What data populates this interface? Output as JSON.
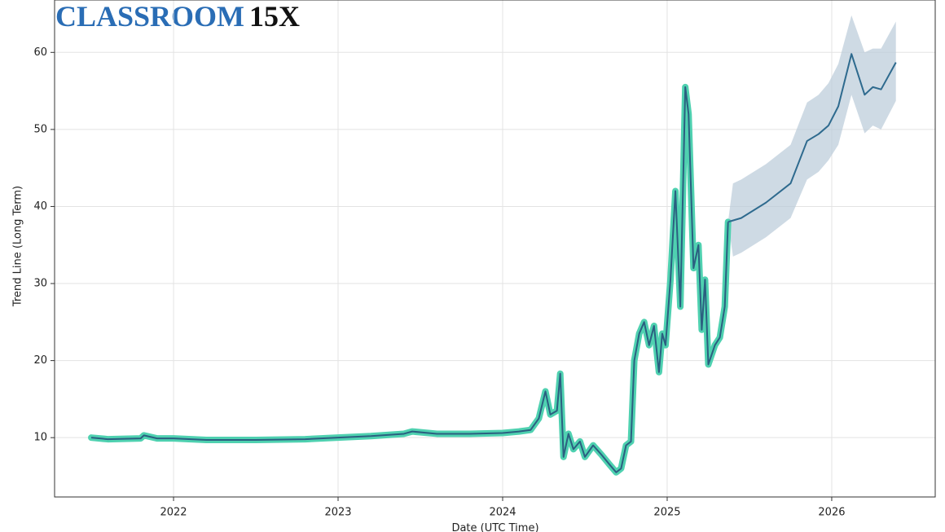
{
  "brand": {
    "name": "CLASSROOM",
    "mark": "15X"
  },
  "chart_data": {
    "type": "line",
    "xlabel": "Date (UTC Time)",
    "ylabel": "Trend Line (Long Term)",
    "xlim": [
      2021.277,
      2026.629
    ],
    "xticks": [
      2022,
      2023,
      2024,
      2025,
      2026
    ],
    "ylim": [
      2.3,
      66.8
    ],
    "yticks": [
      10,
      20,
      30,
      40,
      50,
      60
    ],
    "grid": true,
    "series": [
      {
        "color": "#2b5f80",
        "highlight": "#4fd1b0",
        "x": [
          2021.5,
          2021.6,
          2021.8,
          2021.82,
          2021.9,
          2022.0,
          2022.2,
          2022.5,
          2022.8,
          2023.0,
          2023.2,
          2023.4,
          2023.45,
          2023.6,
          2023.8,
          2024.0,
          2024.1,
          2024.17,
          2024.22,
          2024.26,
          2024.29,
          2024.33,
          2024.35,
          2024.37,
          2024.4,
          2024.43,
          2024.47,
          2024.5,
          2024.55,
          2024.6,
          2024.65,
          2024.69,
          2024.72,
          2024.75,
          2024.78,
          2024.8,
          2024.83,
          2024.86,
          2024.89,
          2024.92,
          2024.95,
          2024.97,
          2024.99,
          2025.02,
          2025.05,
          2025.08,
          2025.11,
          2025.13,
          2025.16,
          2025.19,
          2025.21,
          2025.23,
          2025.25,
          2025.29,
          2025.32,
          2025.35,
          2025.37
        ],
        "values": [
          10,
          9.8,
          9.9,
          10.3,
          9.9,
          9.9,
          9.7,
          9.7,
          9.8,
          10.0,
          10.2,
          10.5,
          10.8,
          10.5,
          10.5,
          10.6,
          10.8,
          11.0,
          12.5,
          16.0,
          13.0,
          13.5,
          18.3,
          7.5,
          10.5,
          8.5,
          9.5,
          7.5,
          9.0,
          7.8,
          6.5,
          5.5,
          6.0,
          9.0,
          9.5,
          20.0,
          23.5,
          25.0,
          22.0,
          24.5,
          18.5,
          23.5,
          22.0,
          30.5,
          42.0,
          27.0,
          55.5,
          52.0,
          32.0,
          35.0,
          24.0,
          30.5,
          19.5,
          22.0,
          23.0,
          27.0,
          38.0
        ]
      },
      {
        "color": "#2e6a8e",
        "x": [
          2025.37,
          2025.45,
          2025.6,
          2025.75,
          2025.85,
          2025.92,
          2025.98,
          2026.04,
          2026.12,
          2026.2,
          2026.25,
          2026.3,
          2026.39
        ],
        "values": [
          38.0,
          38.5,
          40.5,
          43.0,
          48.5,
          49.4,
          50.5,
          53.0,
          59.8,
          54.5,
          55.5,
          55.2,
          58.7
        ]
      }
    ],
    "band": {
      "color": "#b9cbd9",
      "x": [
        2025.37,
        2025.4,
        2025.45,
        2025.6,
        2025.75,
        2025.85,
        2025.92,
        2025.98,
        2026.04,
        2026.12,
        2026.2,
        2026.25,
        2026.3,
        2026.39
      ],
      "lower": [
        38.0,
        33.5,
        34.0,
        36.0,
        38.5,
        43.5,
        44.5,
        46.0,
        48.0,
        54.5,
        49.5,
        50.5,
        50.0,
        53.7
      ],
      "upper": [
        38.0,
        43.0,
        43.5,
        45.5,
        48.0,
        53.5,
        54.5,
        56.0,
        58.5,
        64.8,
        60.0,
        60.5,
        60.5,
        64.0
      ]
    }
  }
}
